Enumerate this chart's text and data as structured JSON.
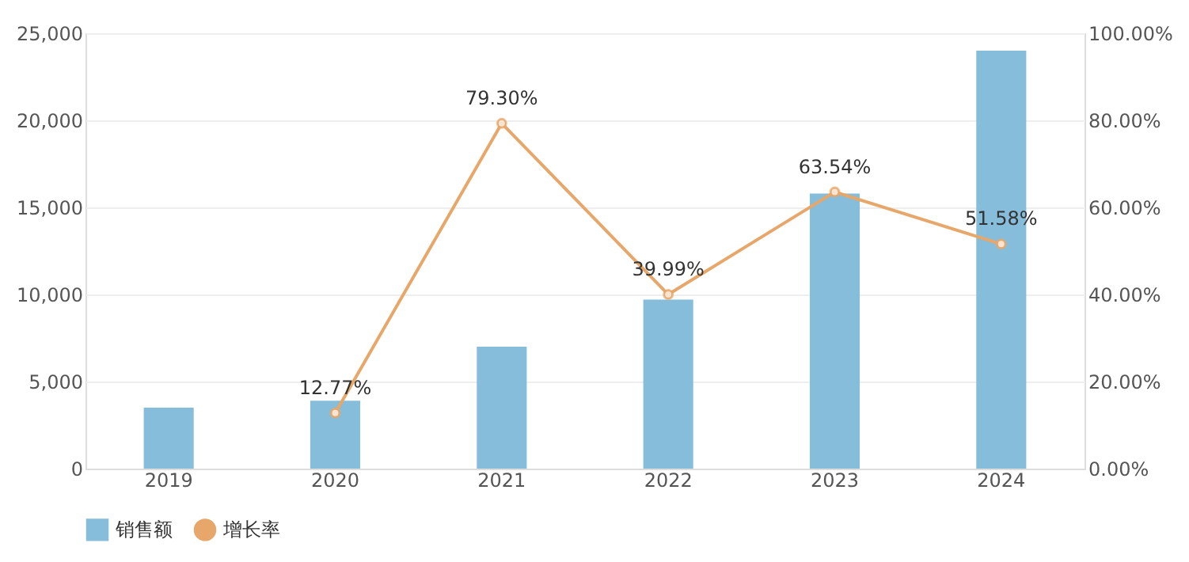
{
  "chart_data": {
    "type": "bar",
    "categories": [
      "2019",
      "2020",
      "2021",
      "2022",
      "2023",
      "2024"
    ],
    "series": [
      {
        "name": "销售额",
        "color": "#86bdda",
        "values": [
          3500,
          3900,
          7000,
          9700,
          15800,
          24000
        ]
      },
      {
        "name": "增长率",
        "type": "line",
        "axis": "y2",
        "color": "#e8a76a",
        "marker": "circle",
        "values": [
          null,
          12.77,
          79.3,
          39.99,
          63.54,
          51.58
        ],
        "value_labels": [
          null,
          "12.77%",
          "79.30%",
          "39.99%",
          "63.54%",
          "51.58%"
        ]
      }
    ],
    "ylim": [
      0,
      25000
    ],
    "yticks": [
      0,
      {
        "value": 5000,
        "label": "5,000"
      },
      {
        "value": 10000,
        "label": "10,000"
      },
      {
        "value": 15000,
        "label": "15,000"
      },
      {
        "value": 20000,
        "label": "20,000"
      },
      {
        "value": 25000,
        "label": "25,000"
      }
    ],
    "y2lim": [
      0,
      100
    ],
    "y2ticks": [
      {
        "value": 0,
        "label": "0.00%"
      },
      {
        "value": 20,
        "label": "20.00%"
      },
      {
        "value": 40,
        "label": "40.00%"
      },
      {
        "value": 60,
        "label": "60.00%"
      },
      {
        "value": 80,
        "label": "80.00%"
      },
      {
        "value": 100,
        "label": "100.00%"
      }
    ],
    "grid": "y",
    "legend": "bottom"
  }
}
